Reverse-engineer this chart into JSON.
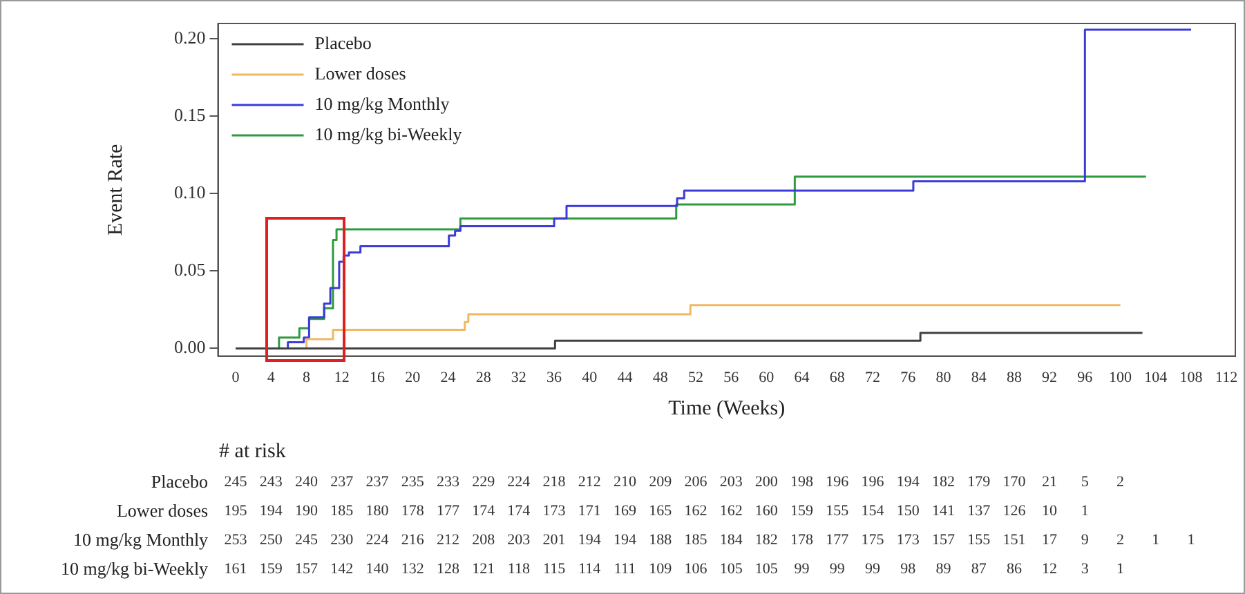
{
  "chart_data": {
    "type": "step",
    "xlabel": "Time (Weeks)",
    "ylabel": "Event Rate",
    "xlim": [
      -2,
      113
    ],
    "xticks": [
      0,
      4,
      8,
      12,
      16,
      20,
      24,
      28,
      32,
      36,
      40,
      44,
      48,
      52,
      56,
      60,
      64,
      68,
      72,
      76,
      80,
      84,
      88,
      92,
      96,
      100,
      104,
      108,
      112
    ],
    "ylim": [
      -0.005,
      0.21
    ],
    "yticks": [
      {
        "value": 0,
        "label": "0.00"
      },
      {
        "value": 0.05,
        "label": "0.05"
      },
      {
        "value": 0.1,
        "label": "0.10"
      },
      {
        "value": 0.15,
        "label": "0.15"
      },
      {
        "value": 0.2,
        "label": "0.20"
      }
    ],
    "legend": "top left",
    "grid": false,
    "marker": "none",
    "line_style": "solid",
    "series": [
      {
        "name": "Placebo",
        "color": "#404040",
        "x": [
          0,
          36.1,
          77.4,
          102.5
        ],
        "values": [
          0,
          0.005,
          0.01,
          0.01
        ]
      },
      {
        "name": "Lower doses",
        "color": "#f0b860",
        "x": [
          0,
          8,
          11,
          25.9,
          26.3,
          51.4,
          100
        ],
        "values": [
          0,
          0.006,
          0.012,
          0.017,
          0.022,
          0.028,
          0.028
        ]
      },
      {
        "name": "10 mg/kg Monthly",
        "color": "#3b3bd9",
        "x": [
          0,
          5.9,
          7.7,
          8.3,
          10,
          10.7,
          11.7,
          12.2,
          12.8,
          14.1,
          24.1,
          24.8,
          25.4,
          36,
          37.4,
          49.9,
          50.7,
          76.6,
          96,
          108
        ],
        "values": [
          0,
          0.004,
          0.007,
          0.02,
          0.029,
          0.039,
          0.056,
          0.06,
          0.062,
          0.066,
          0.073,
          0.076,
          0.079,
          0.084,
          0.092,
          0.097,
          0.102,
          0.108,
          0.206,
          0.206
        ]
      },
      {
        "name": "10 mg/kg bi-Weekly",
        "color": "#2e9a3e",
        "x": [
          0,
          4.9,
          7.2,
          8.3,
          10,
          11,
          11.4,
          25.4,
          49.8,
          63.2,
          102.9
        ],
        "values": [
          0,
          0.007,
          0.013,
          0.019,
          0.026,
          0.07,
          0.077,
          0.084,
          0.093,
          0.111,
          0.111
        ]
      }
    ],
    "annotations": [
      "# at risk",
      "245 243 240 237 237 235 233 229 224 218 212 210 209 206 203 200 198 196 196 194 182 179 170 21 5 2",
      "195 194 190 185 180 178 177 174 174 173 171 169 165 162 162 160 159 155 154 150 141 137 126 10 1",
      "253 250 245 230 224 216 212 208 203 201 194 194 188 185 184 182 178 177 175 173 157 155 151 17 9 2 1 1",
      "161 159 157 142 140 132 128 121 118 115 114 111 109 106 105 105 99 99 99 98 89 87 86 12 3 1"
    ]
  }
}
